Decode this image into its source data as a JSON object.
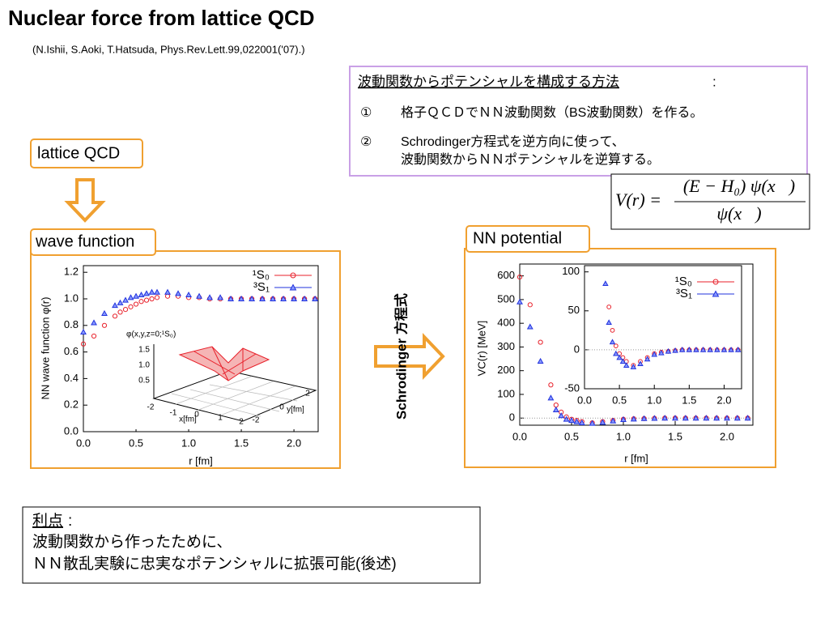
{
  "title": "Nuclear force from lattice QCD",
  "citation": "(N.Ishii, S.Aoki, T.Hatsuda, Phys.Rev.Lett.99,022001('07).)",
  "method": {
    "heading": "波動関数からポテンシャルを構成する方法",
    "colon": ":",
    "items": [
      {
        "mark": "①",
        "lines": [
          "格子ＱＣＤでＮＮ波動関数（BS波動関数）を作る。"
        ]
      },
      {
        "mark": "②",
        "lines": [
          "Schrodinger方程式を逆方向に使って、",
          "波動関数からＮＮポテンシャルを逆算する。"
        ]
      }
    ]
  },
  "formula": {
    "lhs": "V(r) =",
    "numerator": "(E − H₀) ψ(x⃗)",
    "denominator": "ψ(x⃗)"
  },
  "boxes": {
    "lattice": "lattice QCD",
    "wave": "wave function",
    "potential": "NN potential"
  },
  "arrow_label": "Schrodinger 方程式",
  "advantage": {
    "heading": "利点",
    "colon": ":",
    "lines": [
      "波動関数から作ったために、",
      "ＮＮ散乱実験に忠実なポテンシャルに拡張可能(後述)"
    ]
  },
  "chart_data": [
    {
      "type": "scatter",
      "xlabel": "r [fm]",
      "ylabel": "NN wave function φ(r)",
      "xlim": [
        0,
        2.23
      ],
      "ylim": [
        0,
        1.25
      ],
      "xticks": [
        {
          "value": 0,
          "label": "0.0"
        },
        {
          "value": 0.5,
          "label": "0.5"
        },
        {
          "value": 1,
          "label": "1.0"
        },
        {
          "value": 1.5,
          "label": "1.5"
        },
        {
          "value": 2,
          "label": "2.0"
        }
      ],
      "yticks": [
        {
          "value": 0,
          "label": "0.0"
        },
        {
          "value": 0.2,
          "label": "0.2"
        },
        {
          "value": 0.4,
          "label": "0.4"
        },
        {
          "value": 0.6,
          "label": "0.6"
        },
        {
          "value": 0.8,
          "label": "0.8"
        },
        {
          "value": 1,
          "label": "1.0"
        },
        {
          "value": 1.2,
          "label": "1.2"
        }
      ],
      "x": [
        0,
        0.1,
        0.2,
        0.3,
        0.35,
        0.4,
        0.45,
        0.5,
        0.55,
        0.6,
        0.65,
        0.7,
        0.8,
        0.9,
        1.0,
        1.1,
        1.2,
        1.3,
        1.4,
        1.5,
        1.6,
        1.7,
        1.8,
        1.9,
        2.0,
        2.1,
        2.2
      ],
      "series": [
        {
          "name": "¹S₀",
          "color": "#e8212b",
          "marker": "circle",
          "values": [
            0.66,
            0.72,
            0.8,
            0.87,
            0.9,
            0.92,
            0.94,
            0.96,
            0.98,
            0.99,
            1.0,
            1.01,
            1.02,
            1.02,
            1.01,
            1.01,
            1.0,
            1.0,
            1.0,
            1.0,
            1.0,
            1.0,
            1.0,
            1.0,
            1.0,
            1.0,
            1.0
          ]
        },
        {
          "name": "³S₁",
          "color": "#2233dd",
          "marker": "triangle",
          "values": [
            0.75,
            0.82,
            0.89,
            0.95,
            0.97,
            0.99,
            1.01,
            1.02,
            1.03,
            1.04,
            1.05,
            1.05,
            1.05,
            1.04,
            1.03,
            1.02,
            1.01,
            1.01,
            1.0,
            1.0,
            1.0,
            1.0,
            1.0,
            1.0,
            1.0,
            1.0,
            1.0
          ]
        }
      ],
      "surface": {
        "title": "φ(x,y,z=0;¹S₀)",
        "zticks": [
          "1.5",
          "1.0",
          "0.5"
        ],
        "xticks": [
          "-2",
          "-1",
          "0",
          "1",
          "2"
        ],
        "yticks": [
          "-2",
          "0",
          "2"
        ],
        "xlabel": "x[fm]",
        "ylabel": "y[fm]"
      }
    },
    {
      "type": "scatter",
      "xlabel": "r [fm]",
      "ylabel": "VC(r) [MeV]",
      "xlim": [
        0,
        2.25
      ],
      "ylim": [
        -30,
        650
      ],
      "xticks": [
        {
          "value": 0,
          "label": "0.0"
        },
        {
          "value": 0.5,
          "label": "0.5"
        },
        {
          "value": 1,
          "label": "1.0"
        },
        {
          "value": 1.5,
          "label": "1.5"
        },
        {
          "value": 2,
          "label": "2.0"
        }
      ],
      "yticks": [
        0,
        100,
        200,
        300,
        400,
        500,
        600
      ],
      "x": [
        0,
        0.1,
        0.2,
        0.3,
        0.35,
        0.4,
        0.45,
        0.5,
        0.55,
        0.6,
        0.7,
        0.8,
        0.9,
        1.0,
        1.1,
        1.2,
        1.3,
        1.4,
        1.5,
        1.6,
        1.7,
        1.8,
        1.9,
        2.0,
        2.1,
        2.2
      ],
      "series": [
        {
          "name": "¹S₀",
          "color": "#e8212b",
          "marker": "circle",
          "values": [
            595,
            478,
            320,
            140,
            55,
            25,
            5,
            -5,
            -10,
            -15,
            -20,
            -15,
            -10,
            -5,
            -3,
            -2,
            -1,
            0,
            0,
            0,
            0,
            0,
            0,
            0,
            0,
            0
          ]
        },
        {
          "name": "³S₁",
          "color": "#2233dd",
          "marker": "triangle",
          "values": [
            490,
            385,
            240,
            85,
            35,
            10,
            -5,
            -10,
            -15,
            -20,
            -22,
            -18,
            -12,
            -6,
            -4,
            -2,
            -1,
            0,
            0,
            0,
            0,
            0,
            0,
            0,
            0,
            0
          ]
        }
      ],
      "inset": {
        "xlim": [
          0,
          2.25
        ],
        "ylim": [
          -50,
          108
        ],
        "xticks": [
          {
            "value": 0,
            "label": "0.0"
          },
          {
            "value": 0.5,
            "label": "0.5"
          },
          {
            "value": 1,
            "label": "1.0"
          },
          {
            "value": 1.5,
            "label": "1.5"
          },
          {
            "value": 2,
            "label": "2.0"
          }
        ],
        "yticks": [
          -50,
          0,
          50,
          100
        ]
      }
    }
  ]
}
